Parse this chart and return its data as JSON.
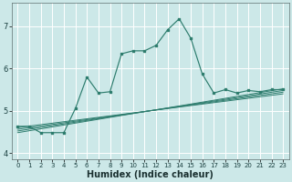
{
  "xlabel": "Humidex (Indice chaleur)",
  "bg_color": "#cce8e8",
  "grid_color": "#ffffff",
  "line_color": "#2e7d6e",
  "xlim": [
    -0.5,
    23.5
  ],
  "ylim": [
    3.85,
    7.55
  ],
  "yticks": [
    4,
    5,
    6,
    7
  ],
  "xticks": [
    0,
    1,
    2,
    3,
    4,
    5,
    6,
    7,
    8,
    9,
    10,
    11,
    12,
    13,
    14,
    15,
    16,
    17,
    18,
    19,
    20,
    21,
    22,
    23
  ],
  "series_main_x": [
    0,
    1,
    2,
    3,
    4,
    5,
    6,
    7,
    8,
    9,
    10,
    11,
    12,
    13,
    14,
    15,
    16,
    17,
    18,
    19,
    20,
    21,
    22,
    23
  ],
  "series_main_y": [
    4.63,
    4.63,
    4.48,
    4.48,
    4.48,
    5.05,
    5.8,
    5.42,
    5.45,
    6.35,
    6.42,
    6.42,
    6.55,
    6.92,
    7.18,
    6.72,
    5.87,
    5.42,
    5.5,
    5.42,
    5.48,
    5.45,
    5.5,
    5.5
  ],
  "linear_lines": [
    {
      "x": [
        0,
        23
      ],
      "y": [
        4.48,
        5.52
      ]
    },
    {
      "x": [
        0,
        23
      ],
      "y": [
        4.52,
        5.48
      ]
    },
    {
      "x": [
        0,
        23
      ],
      "y": [
        4.56,
        5.44
      ]
    },
    {
      "x": [
        0,
        23
      ],
      "y": [
        4.6,
        5.4
      ]
    }
  ],
  "xlabel_fontsize": 7,
  "ytick_fontsize": 6,
  "xtick_fontsize": 5
}
